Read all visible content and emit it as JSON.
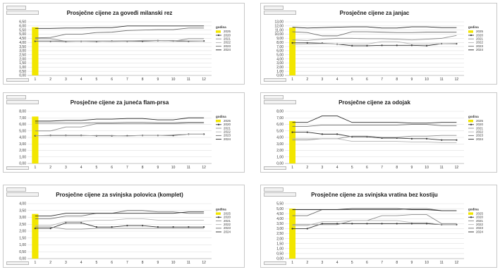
{
  "chart_data": [
    {
      "type": "line",
      "title": "Prosječne cijene za goveđi milanski rez",
      "categories": [
        "1",
        "2",
        "3",
        "4",
        "5",
        "6",
        "7",
        "8",
        "9",
        "10",
        "11",
        "12"
      ],
      "y_ticks": [
        "0,00",
        "0,50",
        "1,00",
        "1,50",
        "2,00",
        "2,50",
        "3,00",
        "3,50",
        "4,00",
        "4,50",
        "5,00",
        "5,50",
        "6,00",
        "6,50"
      ],
      "ylim": [
        0,
        6.5
      ],
      "grid": true,
      "legend_title": "godina",
      "legend_position": "right",
      "series": [
        {
          "name": "2025",
          "kind": "bar",
          "values": [
            5.85,
            null,
            null,
            null,
            null,
            null,
            null,
            null,
            null,
            null,
            null,
            null
          ]
        },
        {
          "name": "2020",
          "values": [
            4.15,
            4.15,
            4.12,
            4.15,
            4.12,
            4.18,
            4.15,
            4.15,
            4.22,
            4.18,
            4.15,
            4.18
          ]
        },
        {
          "name": "2021",
          "values": [
            4.45,
            4.45,
            4.15,
            4.15,
            4.15,
            4.12,
            4.15,
            4.25,
            4.25,
            4.15,
            4.45,
            4.45
          ]
        },
        {
          "name": "2022",
          "values": [
            4.2,
            4.2,
            4.18,
            4.18,
            4.2,
            4.2,
            4.22,
            4.22,
            4.25,
            4.25,
            4.2,
            4.2
          ]
        },
        {
          "name": "2023",
          "values": [
            4.55,
            4.6,
            5.0,
            5.0,
            5.2,
            5.25,
            5.45,
            5.5,
            5.55,
            5.55,
            5.75,
            5.75
          ]
        },
        {
          "name": "2024",
          "values": [
            5.7,
            5.7,
            5.75,
            5.75,
            5.8,
            5.8,
            6.0,
            6.0,
            6.0,
            6.0,
            6.0,
            6.0
          ]
        }
      ]
    },
    {
      "type": "line",
      "title": "Prosječne cijene za janjac",
      "categories": [
        "1",
        "2",
        "3",
        "4",
        "5",
        "6",
        "7",
        "8",
        "9",
        "10",
        "11",
        "12"
      ],
      "y_ticks": [
        "0,00",
        "1,00",
        "2,00",
        "3,00",
        "4,00",
        "5,00",
        "6,00",
        "7,00",
        "8,00",
        "9,00",
        "10,00",
        "11,00",
        "12,00",
        "13,00"
      ],
      "ylim": [
        0,
        13
      ],
      "grid": true,
      "legend_title": "godina",
      "legend_position": "right",
      "series": [
        {
          "name": "2025",
          "kind": "bar",
          "values": [
            11.6,
            null,
            null,
            null,
            null,
            null,
            null,
            null,
            null,
            null,
            null,
            null
          ]
        },
        {
          "name": "2020",
          "values": [
            7.9,
            7.9,
            7.8,
            7.6,
            7.2,
            7.2,
            7.3,
            7.3,
            7.3,
            7.2,
            7.7,
            7.7
          ]
        },
        {
          "name": "2021",
          "values": [
            8.6,
            8.5,
            8.8,
            9.0,
            9.0,
            8.9,
            8.9,
            8.8,
            8.6,
            8.8,
            9.0,
            9.7
          ]
        },
        {
          "name": "2022",
          "values": [
            7.5,
            7.6,
            7.7,
            7.6,
            7.6,
            7.6,
            8.2,
            8.2,
            7.6,
            7.6,
            7.7,
            7.8
          ]
        },
        {
          "name": "2023",
          "values": [
            10.6,
            10.4,
            9.6,
            9.6,
            10.6,
            10.6,
            10.5,
            10.4,
            10.4,
            10.5,
            10.5,
            10.5
          ]
        },
        {
          "name": "2024",
          "values": [
            11.7,
            11.5,
            11.6,
            11.7,
            11.8,
            11.8,
            11.5,
            11.5,
            11.8,
            11.8,
            11.6,
            11.6
          ]
        }
      ]
    },
    {
      "type": "line",
      "title": "Prosječne cijene za juneća flam-prsa",
      "categories": [
        "1",
        "2",
        "3",
        "4",
        "5",
        "6",
        "7",
        "8",
        "9",
        "10",
        "11",
        "12"
      ],
      "y_ticks": [
        "0,00",
        "1,00",
        "2,00",
        "3,00",
        "4,00",
        "5,00",
        "6,00",
        "7,00",
        "8,00"
      ],
      "ylim": [
        0,
        8
      ],
      "grid": true,
      "legend_title": "godina",
      "legend_position": "right",
      "series": [
        {
          "name": "2025",
          "kind": "bar",
          "values": [
            7.2,
            null,
            null,
            null,
            null,
            null,
            null,
            null,
            null,
            null,
            null,
            null
          ]
        },
        {
          "name": "2020",
          "values": [
            4.25,
            4.3,
            4.3,
            4.3,
            4.25,
            4.25,
            4.25,
            4.3,
            4.3,
            4.3,
            4.5,
            4.5
          ]
        },
        {
          "name": "2021",
          "values": [
            5.0,
            5.0,
            5.6,
            5.6,
            6.1,
            6.1,
            6.1,
            6.1,
            6.1,
            6.1,
            6.2,
            6.2
          ]
        },
        {
          "name": "2022",
          "values": [
            4.25,
            4.25,
            4.25,
            4.25,
            4.3,
            4.3,
            4.2,
            4.3,
            4.3,
            4.4,
            4.5,
            4.5
          ]
        },
        {
          "name": "2023",
          "values": [
            6.2,
            6.2,
            6.2,
            6.2,
            6.25,
            6.25,
            6.3,
            6.3,
            6.25,
            6.25,
            6.3,
            6.3
          ]
        },
        {
          "name": "2024",
          "values": [
            6.5,
            6.5,
            6.6,
            6.6,
            6.8,
            6.8,
            6.9,
            6.9,
            6.7,
            6.7,
            7.0,
            7.0
          ]
        }
      ]
    },
    {
      "type": "line",
      "title": "Prosječne cijene za odojak",
      "categories": [
        "1",
        "2",
        "3",
        "4",
        "5",
        "6",
        "7",
        "8",
        "9",
        "10",
        "11",
        "12"
      ],
      "y_ticks": [
        "0,00",
        "1,00",
        "2,00",
        "3,00",
        "4,00",
        "5,00",
        "6,00",
        "7,00",
        "8,00"
      ],
      "ylim": [
        0,
        8
      ],
      "grid": true,
      "legend_title": "godina",
      "legend_position": "right",
      "series": [
        {
          "name": "2025",
          "kind": "bar",
          "values": [
            6.5,
            null,
            null,
            null,
            null,
            null,
            null,
            null,
            null,
            null,
            null,
            null
          ]
        },
        {
          "name": "2020",
          "values": [
            4.8,
            4.8,
            4.5,
            4.5,
            4.1,
            4.1,
            3.9,
            3.9,
            3.8,
            3.8,
            3.6,
            3.6
          ]
        },
        {
          "name": "2021",
          "values": [
            3.6,
            3.6,
            3.8,
            3.8,
            4.2,
            4.2,
            4.0,
            4.0,
            4.2,
            4.2,
            4.3,
            4.3
          ]
        },
        {
          "name": "2022",
          "values": [
            3.8,
            3.8,
            3.8,
            3.8,
            3.4,
            3.4,
            3.4,
            3.4,
            3.3,
            3.3,
            3.2,
            3.2
          ]
        },
        {
          "name": "2023",
          "values": [
            5.7,
            5.7,
            5.9,
            5.9,
            5.9,
            5.9,
            5.9,
            5.9,
            6.0,
            6.0,
            5.8,
            5.8
          ]
        },
        {
          "name": "2024",
          "values": [
            6.3,
            6.3,
            7.3,
            7.3,
            6.3,
            6.3,
            6.3,
            6.3,
            6.2,
            6.2,
            6.3,
            6.3
          ]
        }
      ]
    },
    {
      "type": "line",
      "title": "Prosječne cijene za svinjska polovica (komplet)",
      "categories": [
        "1",
        "2",
        "3",
        "4",
        "5",
        "6",
        "7",
        "8",
        "9",
        "10",
        "11",
        "12"
      ],
      "y_ticks": [
        "0,00",
        "0,50",
        "1,00",
        "1,50",
        "2,00",
        "2,50",
        "3,00",
        "3,50",
        "4,00"
      ],
      "ylim": [
        0,
        4
      ],
      "grid": true,
      "legend_title": "godina",
      "legend_position": "right",
      "series": [
        {
          "name": "2025",
          "kind": "bar",
          "values": [
            3.25,
            null,
            null,
            null,
            null,
            null,
            null,
            null,
            null,
            null,
            null,
            null
          ]
        },
        {
          "name": "2020",
          "values": [
            2.2,
            2.2,
            2.6,
            2.6,
            2.3,
            2.3,
            2.4,
            2.4,
            2.3,
            2.3,
            2.3,
            2.3
          ]
        },
        {
          "name": "2021",
          "values": [
            2.3,
            2.3,
            2.15,
            2.15,
            2.2,
            2.2,
            2.2,
            2.2,
            2.2,
            2.2,
            2.2,
            2.2
          ]
        },
        {
          "name": "2022",
          "values": [
            2.4,
            2.4,
            2.7,
            2.7,
            2.8,
            2.8,
            2.9,
            2.9,
            2.8,
            2.8,
            2.8,
            2.8
          ]
        },
        {
          "name": "2023",
          "values": [
            2.9,
            2.9,
            3.1,
            3.1,
            3.3,
            3.3,
            3.5,
            3.5,
            3.4,
            3.4,
            3.3,
            3.3
          ]
        },
        {
          "name": "2024",
          "values": [
            3.1,
            3.1,
            3.3,
            3.3,
            3.3,
            3.3,
            3.3,
            3.3,
            3.3,
            3.3,
            3.4,
            3.4
          ]
        }
      ]
    },
    {
      "type": "line",
      "title": "Prosječne cijene za svinjska vratina bez kostiju",
      "categories": [
        "1",
        "2",
        "3",
        "4",
        "5",
        "6",
        "7",
        "8",
        "9",
        "10",
        "11",
        "12"
      ],
      "y_ticks": [
        "0,00",
        "0,50",
        "1,00",
        "1,50",
        "2,00",
        "2,50",
        "3,00",
        "3,50",
        "4,00",
        "4,50",
        "5,00",
        "5,50"
      ],
      "ylim": [
        0,
        5.5
      ],
      "grid": true,
      "legend_title": "godina",
      "legend_position": "right",
      "series": [
        {
          "name": "2025",
          "kind": "bar",
          "values": [
            5.0,
            null,
            null,
            null,
            null,
            null,
            null,
            null,
            null,
            null,
            null,
            null
          ]
        },
        {
          "name": "2020",
          "values": [
            3.0,
            3.0,
            3.5,
            3.5,
            3.5,
            3.5,
            3.5,
            3.5,
            3.5,
            3.5,
            3.4,
            3.4
          ]
        },
        {
          "name": "2021",
          "values": [
            3.4,
            3.4,
            3.4,
            3.4,
            3.8,
            3.8,
            4.3,
            4.3,
            4.4,
            4.4,
            3.5,
            3.5
          ]
        },
        {
          "name": "2022",
          "values": [
            3.3,
            3.3,
            3.7,
            3.7,
            3.8,
            3.8,
            3.8,
            3.8,
            3.6,
            3.6,
            3.4,
            3.4
          ]
        },
        {
          "name": "2023",
          "values": [
            4.3,
            4.3,
            4.9,
            4.9,
            4.9,
            4.9,
            4.9,
            4.9,
            5.0,
            5.0,
            4.8,
            4.8
          ]
        },
        {
          "name": "2024",
          "values": [
            4.9,
            4.9,
            4.9,
            4.9,
            5.0,
            5.0,
            5.0,
            5.0,
            4.9,
            4.9,
            4.8,
            4.8
          ]
        }
      ]
    }
  ],
  "series_styles": {
    "2025": {
      "color": "#f2e600",
      "marker": "none"
    },
    "2020": {
      "color": "#333333",
      "marker": "circle"
    },
    "2021": {
      "color": "#8c8c8c",
      "marker": "none"
    },
    "2022": {
      "color": "#b4b4b4",
      "marker": "none"
    },
    "2023": {
      "color": "#6e6e6e",
      "marker": "none"
    },
    "2024": {
      "color": "#2a2a2a",
      "marker": "none"
    }
  }
}
